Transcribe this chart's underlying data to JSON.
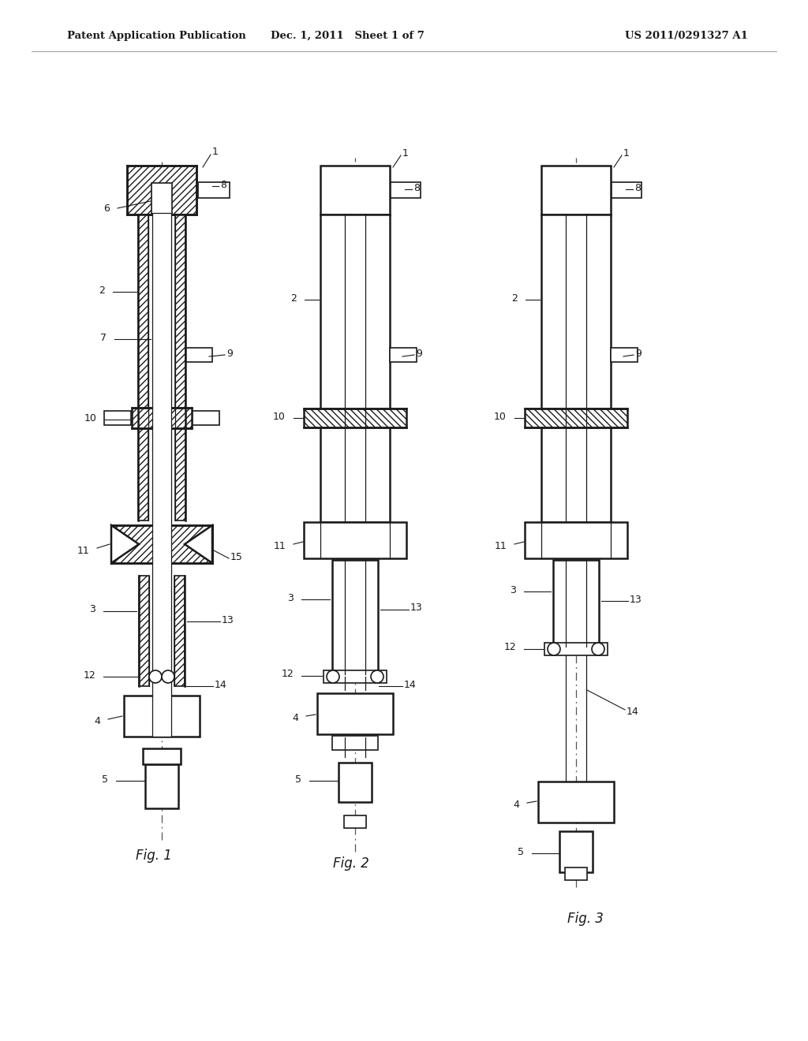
{
  "header_left": "Patent Application Publication",
  "header_mid": "Dec. 1, 2011   Sheet 1 of 7",
  "header_right": "US 2011/0291327 A1",
  "fig1_label": "Fig. 1",
  "fig2_label": "Fig. 2",
  "fig3_label": "Fig. 3",
  "bg_color": "#ffffff",
  "line_color": "#1a1a1a"
}
